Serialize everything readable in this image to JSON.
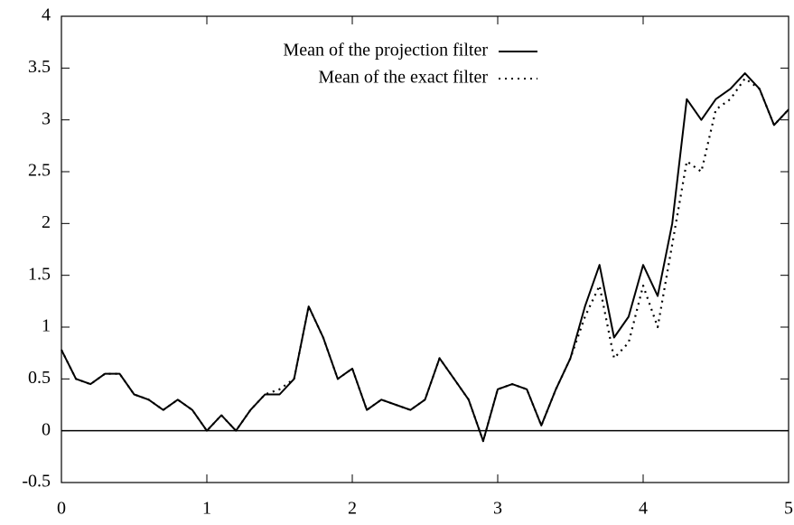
{
  "chart_data": {
    "type": "line",
    "x": [
      0,
      0.1,
      0.2,
      0.3,
      0.4,
      0.5,
      0.6,
      0.7,
      0.8,
      0.9,
      1,
      1.1,
      1.2,
      1.3,
      1.4,
      1.5,
      1.6,
      1.7,
      1.8,
      1.9,
      2,
      2.1,
      2.2,
      2.3,
      2.4,
      2.5,
      2.6,
      2.7,
      2.8,
      2.9,
      3,
      3.1,
      3.2,
      3.3,
      3.4,
      3.5,
      3.6,
      3.7,
      3.8,
      3.9,
      4,
      4.1,
      4.2,
      4.3,
      4.4,
      4.5,
      4.6,
      4.7,
      4.8,
      4.9,
      5
    ],
    "series": [
      {
        "name": "Mean of the projection filter",
        "color": "#000000",
        "dash": "solid",
        "values": [
          0.78,
          0.5,
          0.45,
          0.55,
          0.55,
          0.35,
          0.3,
          0.2,
          0.3,
          0.2,
          0.0,
          0.15,
          0.0,
          0.2,
          0.35,
          0.35,
          0.5,
          1.2,
          0.9,
          0.5,
          0.6,
          0.2,
          0.3,
          0.25,
          0.2,
          0.3,
          0.7,
          0.5,
          0.3,
          -0.1,
          0.4,
          0.45,
          0.4,
          0.05,
          0.4,
          0.7,
          1.2,
          1.6,
          0.9,
          1.1,
          1.6,
          1.3,
          2.0,
          3.2,
          3.0,
          3.2,
          3.3,
          3.45,
          3.3,
          2.95,
          3.1
        ]
      },
      {
        "name": "Mean of the exact filter",
        "color": "#000000",
        "dash": "dotted",
        "values": [
          0.78,
          0.5,
          0.45,
          0.55,
          0.55,
          0.35,
          0.3,
          0.2,
          0.3,
          0.2,
          0.0,
          0.15,
          0.0,
          0.2,
          0.35,
          0.4,
          0.5,
          1.2,
          0.9,
          0.5,
          0.6,
          0.2,
          0.3,
          0.25,
          0.2,
          0.3,
          0.7,
          0.5,
          0.3,
          -0.1,
          0.4,
          0.45,
          0.4,
          0.05,
          0.4,
          0.7,
          1.1,
          1.4,
          0.7,
          0.85,
          1.4,
          1.0,
          1.8,
          2.6,
          2.5,
          3.1,
          3.2,
          3.4,
          3.3,
          2.95,
          3.1
        ]
      }
    ],
    "xlim": [
      0,
      5
    ],
    "ylim": [
      -0.5,
      4
    ],
    "xticks": [
      0,
      1,
      2,
      3,
      4,
      5
    ],
    "yticks": [
      -0.5,
      0,
      0.5,
      1,
      1.5,
      2,
      2.5,
      3,
      3.5,
      4
    ],
    "zero_line": true,
    "legend": "top-center"
  }
}
